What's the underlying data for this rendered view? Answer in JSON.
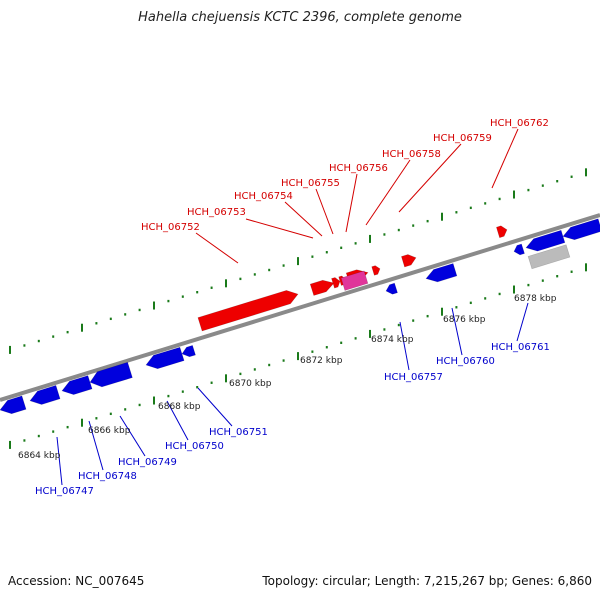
{
  "title": "Hahella chejuensis KCTC 2396, complete genome",
  "footer": {
    "accession": "Accession: NC_007645",
    "topology": "Topology: circular; Length: 7,215,267 bp; Genes: 6,860"
  },
  "colors": {
    "forward": "#ee0000",
    "reverse": "#0000dd",
    "rna": "#e0359a",
    "pseudo": "#bbbbbb",
    "backbone": "#8a8a8a",
    "ticks": "#1a7a1a",
    "label_forward": "#d40000",
    "label_reverse": "#0000cc"
  },
  "axis": {
    "unit": "kbp",
    "tick_labels": [
      "6864 kbp",
      "6866 kbp",
      "6868 kbp",
      "6870 kbp",
      "6872 kbp",
      "6874 kbp",
      "6876 kbp",
      "6878 kbp"
    ]
  },
  "forward_genes": [
    "HCH_06752",
    "HCH_06753",
    "HCH_06754",
    "HCH_06755",
    "HCH_06756",
    "HCH_06758",
    "HCH_06759",
    "HCH_06762"
  ],
  "reverse_genes": [
    "HCH_06747",
    "HCH_06748",
    "HCH_06749",
    "HCH_06750",
    "HCH_06751",
    "HCH_06757",
    "HCH_06760",
    "HCH_06761"
  ]
}
